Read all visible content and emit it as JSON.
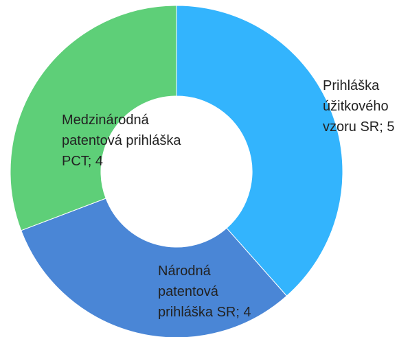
{
  "chart_data": {
    "type": "donut",
    "values": [
      5,
      4,
      4
    ],
    "value_labels": [
      "Prihláška úžitkového vzoru SR; 5",
      "Národná patentová prihláška SR; 4",
      "Medzinárodná patentová prihláška PCT; 4"
    ],
    "colors": [
      "#33b4fd",
      "#4a86d6",
      "#5ecf78"
    ]
  }
}
